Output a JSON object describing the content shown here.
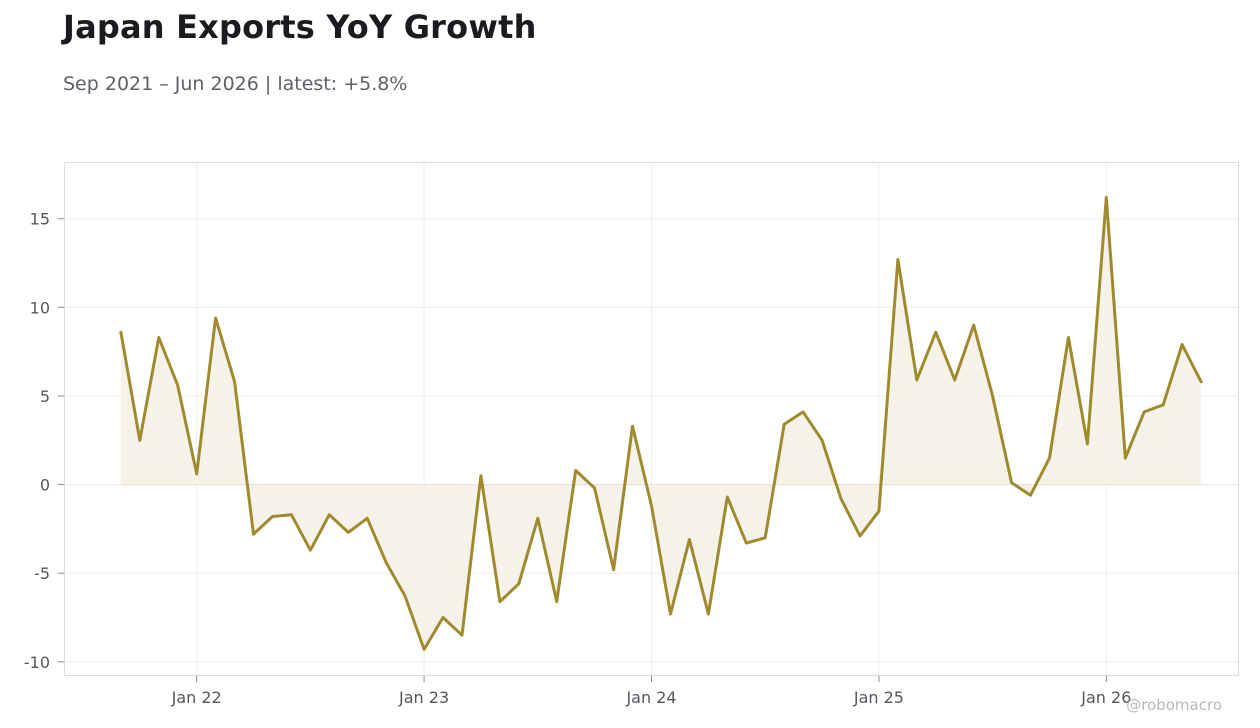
{
  "title": "Japan Exports YoY Growth",
  "subtitle": "Sep 2021 – Jun 2026 | latest: +5.8%",
  "watermark": "@robomacro",
  "colors": {
    "line": "#a08a2e",
    "fill": "#f6f2ea",
    "grid": "#ececec",
    "frame": "#dcdcdc",
    "text": "#55575d"
  },
  "chart_data": {
    "type": "area",
    "title": "Japan Exports YoY Growth",
    "subtitle": "Sep 2021 – Jun 2026 | latest: +5.8%",
    "xlabel": "",
    "ylabel": "",
    "x_range": [
      "2021-06",
      "2026-08"
    ],
    "ylim": [
      -10.8,
      18.2
    ],
    "grid": true,
    "legend": "none",
    "y_ticks": [
      15,
      10,
      5,
      0,
      -5,
      -10
    ],
    "y_tick_labels": [
      "15",
      "10",
      "5",
      "0",
      "-5",
      "-10"
    ],
    "x_ticks": [
      "2022-01",
      "2023-01",
      "2024-01",
      "2025-01",
      "2026-01"
    ],
    "x_tick_labels": [
      "Jan 22",
      "Jan 23",
      "Jan 24",
      "Jan 25",
      "Jan 26"
    ],
    "series": [
      {
        "x": [
          "2021-09",
          "2021-10",
          "2021-11",
          "2021-12",
          "2022-01",
          "2022-02",
          "2022-03",
          "2022-04",
          "2022-05",
          "2022-06",
          "2022-07",
          "2022-08",
          "2022-09",
          "2022-10",
          "2022-11",
          "2022-12",
          "2023-01",
          "2023-02",
          "2023-03",
          "2023-04",
          "2023-05",
          "2023-06",
          "2023-07",
          "2023-08",
          "2023-09",
          "2023-10",
          "2023-11",
          "2023-12",
          "2024-01",
          "2024-02",
          "2024-03",
          "2024-04",
          "2024-05",
          "2024-06",
          "2024-07",
          "2024-08",
          "2024-09",
          "2024-10",
          "2024-11",
          "2024-12",
          "2025-01",
          "2025-02",
          "2025-03",
          "2025-04",
          "2025-05",
          "2025-06",
          "2025-07",
          "2025-08",
          "2025-09",
          "2025-10",
          "2025-11",
          "2025-12",
          "2026-01",
          "2026-02",
          "2026-03",
          "2026-04",
          "2026-05",
          "2026-06"
        ],
        "values": [
          8.6,
          2.5,
          8.3,
          5.6,
          0.6,
          9.4,
          5.8,
          -2.8,
          -1.8,
          -1.7,
          -3.7,
          -1.7,
          -2.7,
          -1.9,
          -4.4,
          -6.3,
          -9.3,
          -7.5,
          -8.5,
          0.5,
          -6.6,
          -5.6,
          -1.9,
          -6.6,
          0.8,
          -0.2,
          -4.8,
          3.3,
          -1.2,
          -7.3,
          -3.1,
          -7.3,
          -0.7,
          -3.3,
          -3.0,
          3.4,
          4.1,
          2.5,
          -0.8,
          -2.9,
          -1.5,
          12.7,
          5.9,
          8.6,
          5.9,
          9.0,
          5.0,
          0.1,
          -0.6,
          1.5,
          8.3,
          2.3,
          16.2,
          1.5,
          4.1,
          4.5,
          7.9,
          5.8
        ]
      }
    ]
  }
}
